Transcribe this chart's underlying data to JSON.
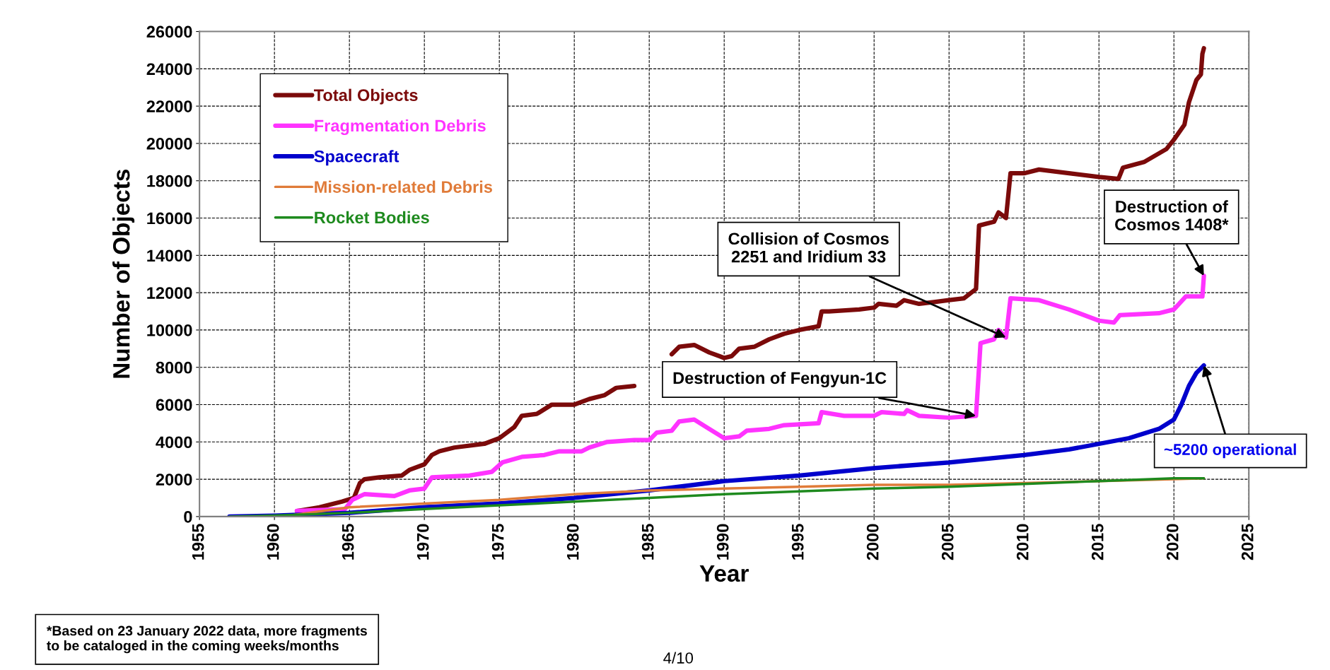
{
  "chart_data": {
    "type": "line",
    "xlabel": "Year",
    "ylabel": "Number of Objects",
    "xlim": [
      1955,
      2025
    ],
    "xticks": [
      1955,
      1960,
      1965,
      1970,
      1975,
      1980,
      1985,
      1990,
      1995,
      2000,
      2005,
      2010,
      2015,
      2020,
      2025
    ],
    "ylim": [
      0,
      26000
    ],
    "yticks": [
      0,
      2000,
      4000,
      6000,
      8000,
      10000,
      12000,
      14000,
      16000,
      18000,
      20000,
      22000,
      24000,
      26000
    ],
    "grid": true,
    "legend": "top left",
    "line_style": "solid",
    "marker": "none",
    "series": [
      {
        "name": "Total Objects",
        "color": "#7b0a0a",
        "x": [
          1961.5,
          1963,
          1964.5,
          1965.3,
          1965.7,
          1966,
          1967,
          1968.5,
          1969,
          1970,
          1970.5,
          1971,
          1972,
          1974,
          1975,
          1976,
          1976.5,
          1977.5,
          1978.5,
          1980,
          1981,
          1982,
          1982.8,
          1984,
          1985,
          1986,
          1986.5,
          1987,
          1988,
          1989,
          1990,
          1990.5,
          1991,
          1992,
          1993,
          1994,
          1995,
          1996.3,
          1996.5,
          1997,
          1999,
          2000,
          2000.3,
          2001.5,
          2002,
          2003,
          2004,
          2005,
          2006,
          2006.8,
          2007.0,
          2008,
          2008.3,
          2008.8,
          2009.1,
          2010,
          2011,
          2013,
          2015,
          2016.3,
          2016.6,
          2018,
          2019.5,
          2020,
          2020.7,
          2021,
          2021.5,
          2021.8,
          2021.9,
          2022.0
        ],
        "values": [
          300,
          500,
          800,
          1000,
          1800,
          2000,
          2100,
          2200,
          2500,
          2800,
          3300,
          3500,
          3700,
          3900,
          4200,
          4800,
          5400,
          5500,
          6000,
          6000,
          6300,
          6500,
          6900,
          7000,
          null,
          null,
          8700,
          9100,
          9200,
          8800,
          8500,
          8600,
          9000,
          9100,
          9500,
          9800,
          10000,
          10200,
          11000,
          11000,
          11100,
          11200,
          11400,
          11300,
          11600,
          11400,
          11500,
          11600,
          11700,
          12200,
          15600,
          15800,
          16300,
          16000,
          18400,
          18400,
          18600,
          18400,
          18200,
          18100,
          18700,
          19000,
          19700,
          20200,
          21000,
          22200,
          23400,
          23700,
          24800,
          25100
        ]
      },
      {
        "name": "Fragmentation Debris",
        "color": "#ff33ff",
        "x": [
          1961.5,
          1964.7,
          1965.2,
          1966,
          1968,
          1969,
          1970,
          1970.5,
          1973,
          1974.5,
          1975.2,
          1976.5,
          1978,
          1979,
          1980.5,
          1981,
          1982.2,
          1984,
          1985,
          1985.5,
          1986.5,
          1987,
          1988,
          1989,
          1990,
          1991,
          1991.5,
          1993,
          1994,
          1996.3,
          1996.5,
          1998,
          2000,
          2000.5,
          2002,
          2002.2,
          2003,
          2005,
          2006.8,
          2007.1,
          2008,
          2008.3,
          2008.8,
          2009.1,
          2011,
          2013,
          2015,
          2016,
          2016.4,
          2019,
          2020,
          2020.8,
          2021.9,
          2022.0
        ],
        "values": [
          300,
          400,
          900,
          1200,
          1100,
          1400,
          1500,
          2100,
          2200,
          2400,
          2900,
          3200,
          3300,
          3500,
          3500,
          3700,
          4000,
          4100,
          4100,
          4500,
          4600,
          5100,
          5200,
          4700,
          4200,
          4300,
          4600,
          4700,
          4900,
          5000,
          5600,
          5400,
          5400,
          5600,
          5500,
          5700,
          5400,
          5300,
          5400,
          9300,
          9500,
          10000,
          9600,
          11700,
          11600,
          11100,
          10500,
          10400,
          10800,
          10900,
          11100,
          11800,
          11800,
          12900
        ]
      },
      {
        "name": "Spacecraft",
        "color": "#0000cc",
        "x": [
          1957,
          1960,
          1965,
          1970,
          1975,
          1980,
          1985,
          1990,
          1995,
          2000,
          2005,
          2010,
          2013,
          2015,
          2017,
          2019,
          2020,
          2020.5,
          2021,
          2021.5,
          2022
        ],
        "values": [
          0,
          50,
          200,
          500,
          700,
          1000,
          1400,
          1900,
          2200,
          2600,
          2900,
          3300,
          3600,
          3900,
          4200,
          4700,
          5200,
          6000,
          7000,
          7700,
          8100
        ]
      },
      {
        "name": "Mission-related Debris",
        "color": "#e07b39",
        "x": [
          1961,
          1965,
          1970,
          1975,
          1980,
          1985,
          1990,
          1995,
          2000,
          2005,
          2010,
          2015,
          2020,
          2022
        ],
        "values": [
          50,
          500,
          700,
          900,
          1200,
          1400,
          1500,
          1600,
          1700,
          1700,
          1800,
          1900,
          2000,
          2050
        ]
      },
      {
        "name": "Rocket Bodies",
        "color": "#1e8a1e",
        "x": [
          1957,
          1960,
          1965,
          1970,
          1975,
          1980,
          1985,
          1990,
          1995,
          2000,
          2005,
          2010,
          2015,
          2020,
          2022
        ],
        "values": [
          0,
          50,
          200,
          400,
          600,
          800,
          1000,
          1200,
          1350,
          1500,
          1600,
          1750,
          1900,
          2050,
          2050
        ]
      }
    ],
    "annotations": [
      {
        "text": "Destruction of Fengyun-1C",
        "x": 2006.8,
        "y": 5400
      },
      {
        "text": "Collision of Cosmos\n2251 and Iridium 33",
        "x": 2008.8,
        "y": 9600
      },
      {
        "text": "Destruction of\nCosmos 1408*",
        "x": 2022.0,
        "y": 12900
      },
      {
        "text": "~5200 operational",
        "x": 2022,
        "y": 8100
      },
      "*Based on 23 January 2022 data, more fragments\nto be cataloged in the coming weeks/months",
      "4/10"
    ]
  }
}
